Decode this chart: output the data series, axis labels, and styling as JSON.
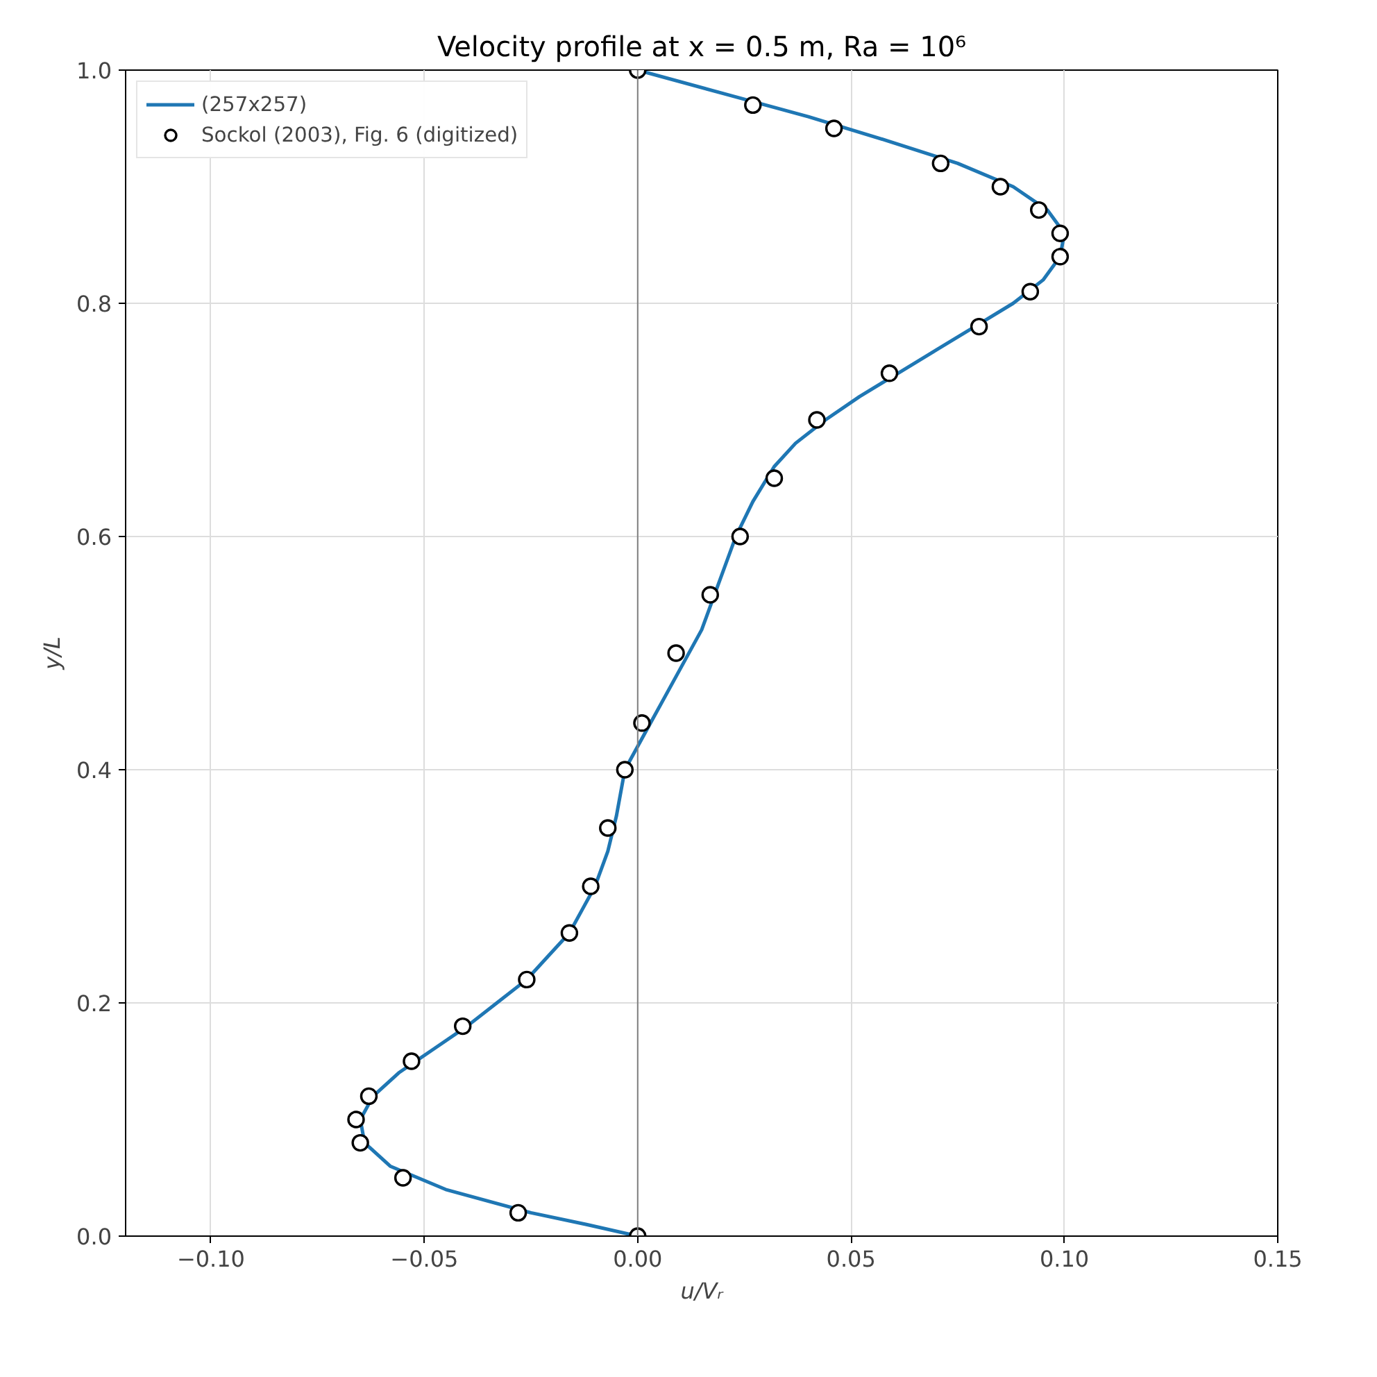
{
  "chart_data": {
    "type": "line",
    "title": "Velocity profile at x = 0.5 m, Ra = 10⁶",
    "xlabel": "u/Vᵣ",
    "ylabel": "y/L",
    "xlim": [
      -0.12,
      0.15
    ],
    "ylim": [
      0,
      1
    ],
    "xticks": [
      {
        "value": -0.1,
        "label": "−0.10"
      },
      {
        "value": -0.05,
        "label": "−0.05"
      },
      {
        "value": 0,
        "label": "0.00"
      },
      {
        "value": 0.05,
        "label": "0.05"
      },
      {
        "value": 0.1,
        "label": "0.10"
      },
      {
        "value": 0.15,
        "label": "0.15"
      }
    ],
    "yticks": [
      {
        "value": 0,
        "label": "0.0"
      },
      {
        "value": 0.2,
        "label": "0.2"
      },
      {
        "value": 0.4,
        "label": "0.4"
      },
      {
        "value": 0.6,
        "label": "0.6"
      },
      {
        "value": 0.8,
        "label": "0.8"
      },
      {
        "value": 1,
        "label": "1.0"
      }
    ],
    "grid": true,
    "legend": "top left",
    "ref_lines": [
      {
        "axis": "x",
        "value": 0,
        "color": "#808080"
      }
    ],
    "series": [
      {
        "name": "(257x257)",
        "color": "#1f77b4",
        "line_style": "solid",
        "x": [
          0,
          -0.012,
          -0.025,
          -0.045,
          -0.058,
          -0.064,
          -0.065,
          -0.062,
          -0.056,
          -0.048,
          -0.04,
          -0.033,
          -0.026,
          -0.021,
          -0.016,
          -0.013,
          -0.01,
          -0.007,
          -0.005,
          -0.003,
          0.003,
          0.009,
          0.015,
          0.019,
          0.023,
          0.027,
          0.032,
          0.037,
          0.044,
          0.052,
          0.061,
          0.07,
          0.079,
          0.088,
          0.095,
          0.099,
          0.1,
          0.096,
          0.088,
          0.075,
          0.058,
          0.04,
          0.02,
          0
        ],
        "values": [
          0,
          0.01,
          0.02,
          0.04,
          0.06,
          0.08,
          0.1,
          0.12,
          0.14,
          0.16,
          0.18,
          0.2,
          0.22,
          0.24,
          0.26,
          0.28,
          0.3,
          0.33,
          0.36,
          0.4,
          0.44,
          0.48,
          0.52,
          0.56,
          0.6,
          0.63,
          0.66,
          0.68,
          0.7,
          0.72,
          0.74,
          0.76,
          0.78,
          0.8,
          0.82,
          0.84,
          0.86,
          0.88,
          0.9,
          0.92,
          0.94,
          0.96,
          0.98,
          1.0
        ]
      },
      {
        "name": "Sockol (2003), Fig. 6 (digitized)",
        "type": "scatter",
        "marker": "circle",
        "color": "#000000",
        "x": [
          0,
          0.027,
          0.046,
          0.071,
          0.085,
          0.094,
          0.099,
          0.099,
          0.092,
          0.08,
          0.059,
          0.042,
          0.032,
          0.024,
          0.017,
          0.009,
          0.001,
          -0.003,
          -0.007,
          -0.011,
          -0.016,
          -0.026,
          -0.041,
          -0.053,
          -0.063,
          -0.066,
          -0.065,
          -0.055,
          -0.028,
          0
        ],
        "values": [
          1.0,
          0.97,
          0.95,
          0.92,
          0.9,
          0.88,
          0.86,
          0.84,
          0.81,
          0.78,
          0.74,
          0.7,
          0.65,
          0.6,
          0.55,
          0.5,
          0.44,
          0.4,
          0.35,
          0.3,
          0.26,
          0.22,
          0.18,
          0.15,
          0.12,
          0.1,
          0.08,
          0.05,
          0.02,
          0
        ]
      }
    ]
  }
}
